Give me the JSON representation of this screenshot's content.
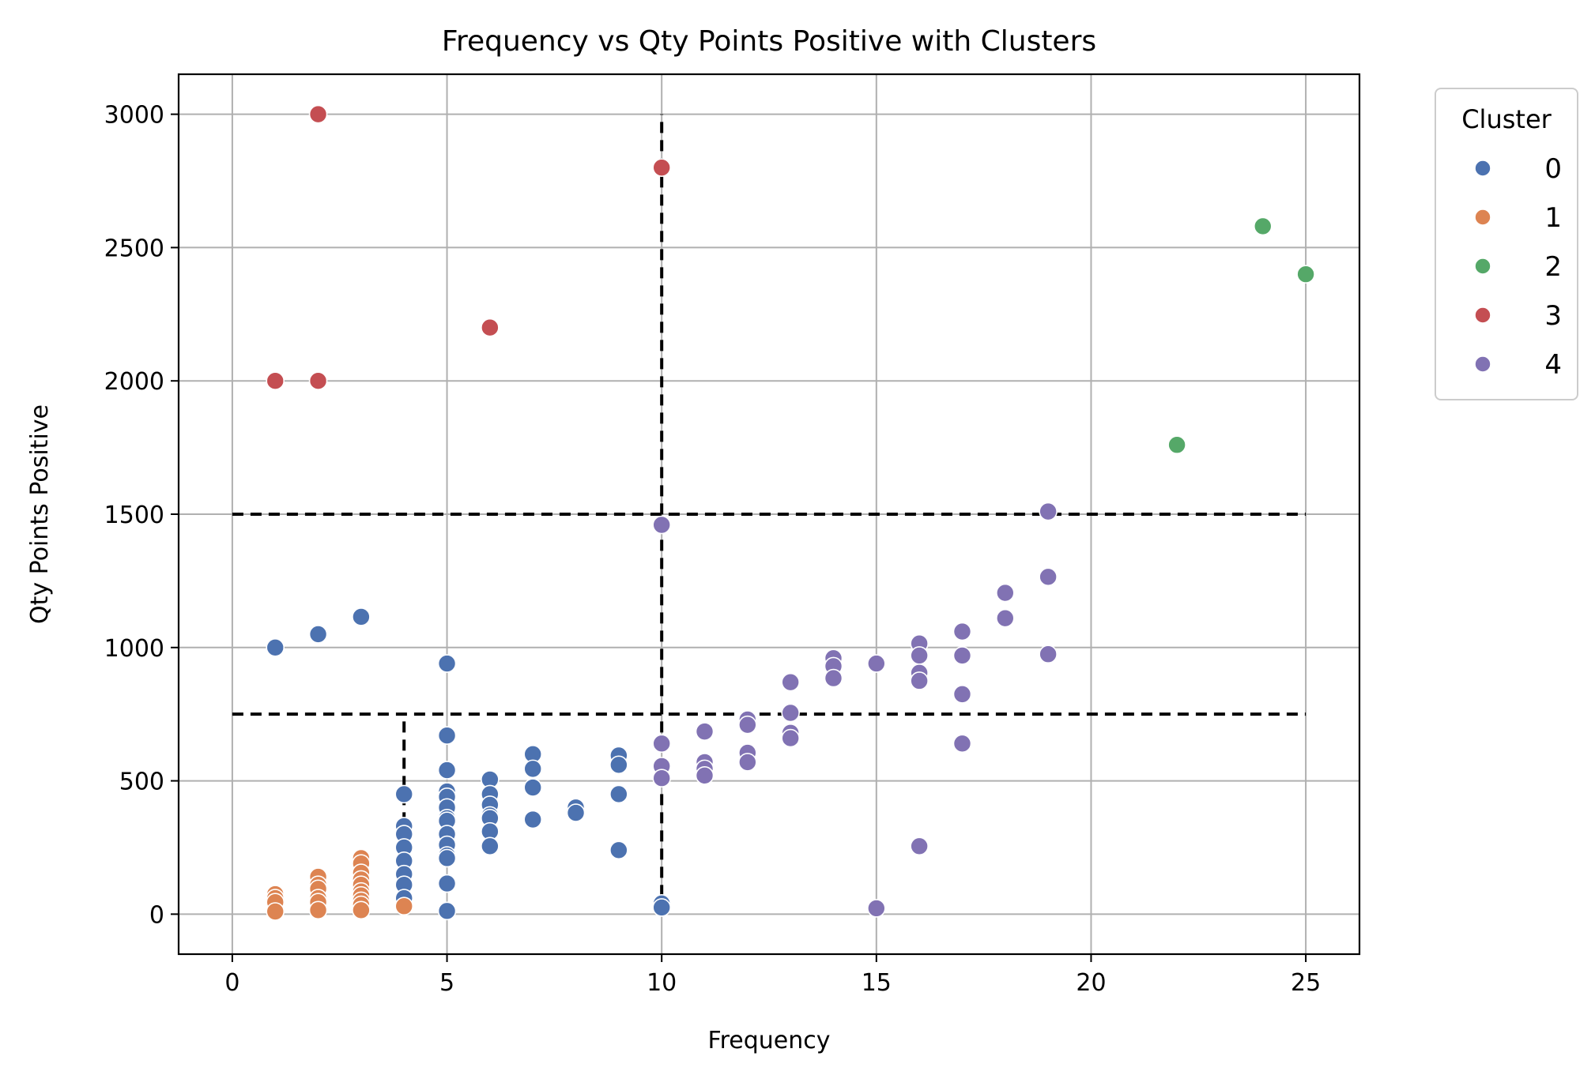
{
  "chart_data": {
    "type": "scatter",
    "title": "Frequency vs Qty Points Positive with Clusters",
    "xlabel": "Frequency",
    "ylabel": "Qty Points Positive",
    "xlim": [
      -1.25,
      26.25
    ],
    "ylim": [
      -150,
      3150
    ],
    "xticks": [
      0,
      5,
      10,
      15,
      20,
      25
    ],
    "yticks": [
      0,
      500,
      1000,
      1500,
      2000,
      2500,
      3000
    ],
    "grid": true,
    "legend": {
      "title": "Cluster",
      "placement": "outside-right"
    },
    "reference_lines": [
      {
        "type": "horizontal",
        "y": 1500,
        "x_from": 0,
        "x_to": 25
      },
      {
        "type": "horizontal",
        "y": 750,
        "x_from": 0,
        "x_to": 25
      },
      {
        "type": "vertical",
        "x": 10,
        "y_from": 0,
        "y_to": 3000
      },
      {
        "type": "vertical",
        "x": 4,
        "y_from": 0,
        "y_to": 750
      }
    ],
    "series": [
      {
        "name": "0",
        "color": "#4c72b0",
        "points": [
          [
            1,
            1000
          ],
          [
            2,
            1050
          ],
          [
            3,
            1115
          ],
          [
            4,
            450
          ],
          [
            4,
            330
          ],
          [
            4,
            300
          ],
          [
            4,
            250
          ],
          [
            4,
            200
          ],
          [
            4,
            150
          ],
          [
            4,
            110
          ],
          [
            4,
            60
          ],
          [
            5,
            940
          ],
          [
            5,
            670
          ],
          [
            5,
            540
          ],
          [
            5,
            460
          ],
          [
            5,
            440
          ],
          [
            5,
            400
          ],
          [
            5,
            360
          ],
          [
            5,
            350
          ],
          [
            5,
            300
          ],
          [
            5,
            260
          ],
          [
            5,
            220
          ],
          [
            5,
            210
          ],
          [
            5,
            115
          ],
          [
            5,
            12
          ],
          [
            6,
            505
          ],
          [
            6,
            450
          ],
          [
            6,
            410
          ],
          [
            6,
            370
          ],
          [
            6,
            360
          ],
          [
            6,
            310
          ],
          [
            6,
            255
          ],
          [
            7,
            600
          ],
          [
            7,
            545
          ],
          [
            7,
            475
          ],
          [
            7,
            355
          ],
          [
            8,
            400
          ],
          [
            8,
            380
          ],
          [
            9,
            595
          ],
          [
            9,
            560
          ],
          [
            9,
            450
          ],
          [
            9,
            240
          ],
          [
            10,
            40
          ],
          [
            10,
            25
          ]
        ]
      },
      {
        "name": "1",
        "color": "#dd8452",
        "points": [
          [
            1,
            75
          ],
          [
            1,
            60
          ],
          [
            1,
            45
          ],
          [
            1,
            10
          ],
          [
            2,
            140
          ],
          [
            2,
            110
          ],
          [
            2,
            95
          ],
          [
            2,
            60
          ],
          [
            2,
            45
          ],
          [
            2,
            15
          ],
          [
            3,
            210
          ],
          [
            3,
            190
          ],
          [
            3,
            155
          ],
          [
            3,
            130
          ],
          [
            3,
            110
          ],
          [
            3,
            85
          ],
          [
            3,
            70
          ],
          [
            3,
            50
          ],
          [
            3,
            35
          ],
          [
            3,
            15
          ],
          [
            4,
            30
          ]
        ]
      },
      {
        "name": "2",
        "color": "#55a868",
        "points": [
          [
            22,
            1760
          ],
          [
            24,
            2580
          ],
          [
            25,
            2400
          ]
        ]
      },
      {
        "name": "3",
        "color": "#c44e52",
        "points": [
          [
            1,
            2000
          ],
          [
            2,
            3000
          ],
          [
            2,
            2000
          ],
          [
            6,
            2200
          ],
          [
            10,
            2800
          ]
        ]
      },
      {
        "name": "4",
        "color": "#8172b3",
        "points": [
          [
            10,
            1460
          ],
          [
            10,
            640
          ],
          [
            10,
            555
          ],
          [
            10,
            510
          ],
          [
            11,
            685
          ],
          [
            11,
            570
          ],
          [
            11,
            545
          ],
          [
            11,
            520
          ],
          [
            12,
            730
          ],
          [
            12,
            710
          ],
          [
            12,
            605
          ],
          [
            12,
            570
          ],
          [
            13,
            870
          ],
          [
            13,
            755
          ],
          [
            13,
            680
          ],
          [
            13,
            660
          ],
          [
            14,
            960
          ],
          [
            14,
            930
          ],
          [
            14,
            885
          ],
          [
            15,
            940
          ],
          [
            15,
            22
          ],
          [
            16,
            1015
          ],
          [
            16,
            970
          ],
          [
            16,
            905
          ],
          [
            16,
            875
          ],
          [
            16,
            255
          ],
          [
            17,
            1060
          ],
          [
            17,
            970
          ],
          [
            17,
            825
          ],
          [
            17,
            640
          ],
          [
            18,
            1205
          ],
          [
            18,
            1110
          ],
          [
            19,
            1510
          ],
          [
            19,
            1265
          ],
          [
            19,
            975
          ]
        ]
      }
    ]
  }
}
